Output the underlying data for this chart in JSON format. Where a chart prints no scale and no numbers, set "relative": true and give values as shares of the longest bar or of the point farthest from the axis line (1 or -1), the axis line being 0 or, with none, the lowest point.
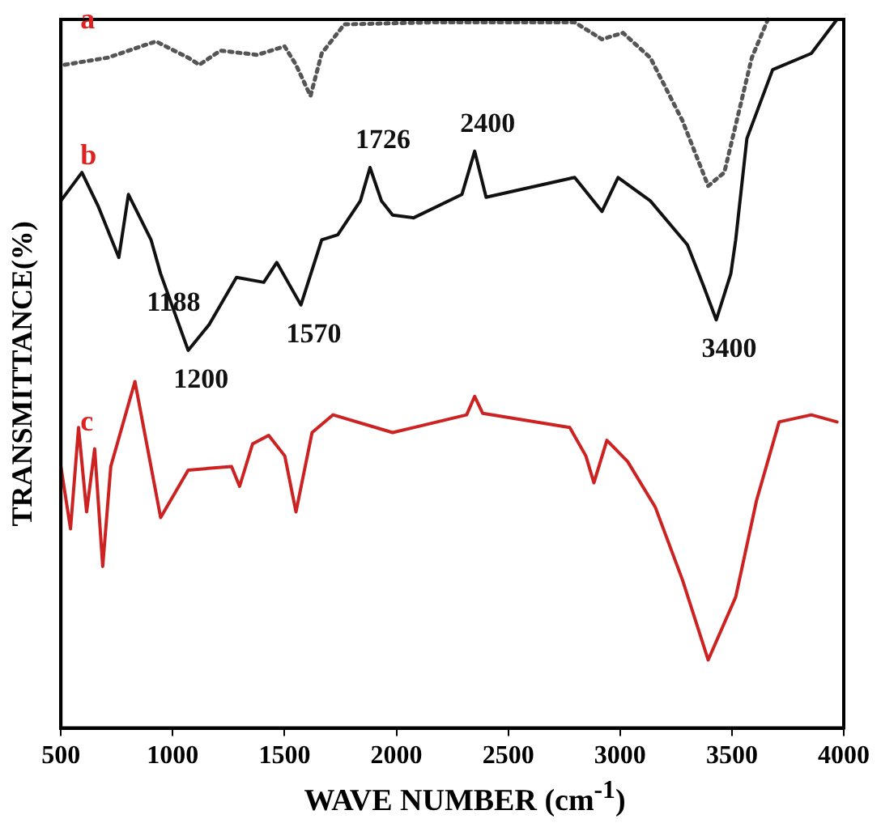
{
  "chart_data": {
    "type": "line",
    "relative": true,
    "xlabel": "WAVE NUMBER (cm$^{-1}$)",
    "ylabel": "TRANSMITTANCE(%)",
    "xlim": [
      500,
      4000
    ],
    "xticks": [
      500,
      1000,
      1500,
      2000,
      2500,
      3000,
      3500,
      4000
    ],
    "marker": "none",
    "series": [
      {
        "name": "a",
        "color": "#555555",
        "line_style": "dotted",
        "x": [
          517,
          709,
          925,
          1069,
          1119,
          1213,
          1378,
          1500,
          1551,
          1616,
          1666,
          1767,
          2170,
          2797,
          2919,
          3013,
          3135,
          3279,
          3394,
          3466,
          3589,
          3661
        ],
        "values": [
          0.936,
          0.946,
          0.969,
          0.946,
          0.936,
          0.956,
          0.95,
          0.962,
          0.936,
          0.892,
          0.952,
          0.993,
          0.996,
          0.996,
          0.972,
          0.981,
          0.946,
          0.857,
          0.765,
          0.784,
          0.946,
          1
        ]
      },
      {
        "name": "b",
        "color": "#111111",
        "line_style": "solid",
        "x": [
          500,
          594,
          666,
          759,
          802,
          903,
          946,
          1069,
          1162,
          1285,
          1407,
          1465,
          1573,
          1666,
          1738,
          1839,
          1882,
          1933,
          1983,
          2077,
          2293,
          2350,
          2401,
          2797,
          2919,
          2991,
          3135,
          3301,
          3373,
          3430,
          3495,
          3517,
          3567,
          3682,
          3855,
          3970
        ],
        "values": [
          0.744,
          0.784,
          0.737,
          0.664,
          0.753,
          0.689,
          0.641,
          0.533,
          0.569,
          0.636,
          0.629,
          0.657,
          0.597,
          0.689,
          0.696,
          0.744,
          0.791,
          0.744,
          0.724,
          0.72,
          0.753,
          0.814,
          0.749,
          0.777,
          0.729,
          0.777,
          0.744,
          0.682,
          0.624,
          0.576,
          0.641,
          0.689,
          0.832,
          0.929,
          0.952,
          1
        ]
      },
      {
        "name": "c",
        "color": "#cc2222",
        "line_style": "solid",
        "x": [
          500,
          543,
          579,
          615,
          651,
          687,
          723,
          831,
          946,
          1069,
          1263,
          1299,
          1357,
          1429,
          1501,
          1551,
          1623,
          1717,
          1983,
          2314,
          2350,
          2386,
          2775,
          2847,
          2883,
          2941,
          3034,
          3157,
          3279,
          3394,
          3517,
          3610,
          3711,
          3855,
          3970
        ],
        "values": [
          0.369,
          0.281,
          0.424,
          0.305,
          0.394,
          0.228,
          0.369,
          0.489,
          0.297,
          0.364,
          0.369,
          0.341,
          0.401,
          0.413,
          0.384,
          0.305,
          0.417,
          0.442,
          0.417,
          0.442,
          0.468,
          0.444,
          0.424,
          0.384,
          0.346,
          0.406,
          0.376,
          0.312,
          0.209,
          0.096,
          0.185,
          0.321,
          0.432,
          0.442,
          0.432
        ]
      }
    ],
    "annotations": [
      {
        "text": "1188",
        "x": 946,
        "y": 0.641
      },
      {
        "text": "1200",
        "x": 1069,
        "y": 0.533
      },
      {
        "text": "1570",
        "x": 1573,
        "y": 0.597
      },
      {
        "text": "1726",
        "x": 1882,
        "y": 0.791
      },
      {
        "text": "2400",
        "x": 2350,
        "y": 0.814
      },
      {
        "text": "3400",
        "x": 3430,
        "y": 0.576
      }
    ]
  }
}
